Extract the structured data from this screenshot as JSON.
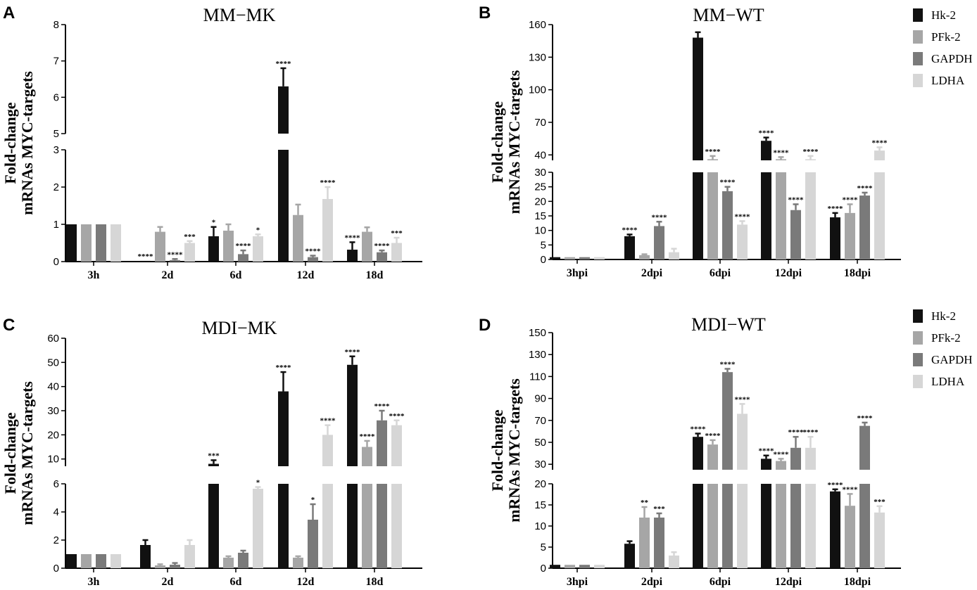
{
  "palette": {
    "Hk-2": "#111111",
    "PFk-2": "#a6a6a6",
    "GAPDH": "#7a7a7a",
    "LDHA": "#d6d6d6"
  },
  "chart_data": [
    {
      "type": "bar",
      "panel": "A",
      "title": "MM−MK",
      "ylabel": [
        "Fold-change",
        "mRNAs MYC-targets"
      ],
      "categories": [
        "3h",
        "2d",
        "6d",
        "12d",
        "18d"
      ],
      "broken_axis": {
        "lower": [
          0,
          3
        ],
        "upper": [
          5,
          8
        ]
      },
      "lower_ticks": [
        "0",
        "1",
        "2",
        "3"
      ],
      "upper_ticks": [
        "5",
        "6",
        "7",
        "8"
      ],
      "series": [
        {
          "name": "Hk-2",
          "values": [
            1,
            0.02,
            0.68,
            6.3,
            0.32
          ],
          "errors": [
            0,
            0,
            0.25,
            0.5,
            0.2
          ],
          "sig": [
            "",
            "****",
            "*",
            "****",
            "****"
          ]
        },
        {
          "name": "PFk-2",
          "values": [
            1,
            0.8,
            0.83,
            1.25,
            0.8
          ],
          "errors": [
            0,
            0.13,
            0.17,
            0.28,
            0.12
          ],
          "sig": [
            "",
            "",
            "",
            "",
            ""
          ]
        },
        {
          "name": "GAPDH",
          "values": [
            1,
            0.04,
            0.2,
            0.12,
            0.25
          ],
          "errors": [
            0,
            0.03,
            0.1,
            0.04,
            0.05
          ],
          "sig": [
            "",
            "****",
            "****",
            "****",
            "****"
          ]
        },
        {
          "name": "LDHA",
          "values": [
            1,
            0.5,
            0.68,
            1.68,
            0.5
          ],
          "errors": [
            0,
            0.05,
            0.05,
            0.32,
            0.14
          ],
          "sig": [
            "",
            "***",
            "*",
            "****",
            "***"
          ]
        }
      ]
    },
    {
      "type": "bar",
      "panel": "B",
      "title": "MM−WT",
      "ylabel": [
        "Fold-change",
        "mRNAs MYC-targets"
      ],
      "categories": [
        "3hpi",
        "2dpi",
        "6dpi",
        "12dpi",
        "18dpi"
      ],
      "broken_axis": {
        "lower": [
          0,
          30
        ],
        "upper": [
          35,
          160
        ]
      },
      "lower_ticks": [
        "0",
        "5",
        "10",
        "15",
        "20",
        "25",
        "30"
      ],
      "upper_ticks": [
        "40",
        "70",
        "100",
        "130",
        "160"
      ],
      "legend": [
        "Hk-2",
        "PFk-2",
        "GAPDH",
        "LDHA"
      ],
      "series": [
        {
          "name": "Hk-2",
          "values": [
            0.8,
            8,
            148,
            53,
            14.5
          ],
          "errors": [
            0,
            0.6,
            5,
            3,
            1.5
          ],
          "sig": [
            "",
            "****",
            "",
            "****",
            "****"
          ]
        },
        {
          "name": "PFk-2",
          "values": [
            0.8,
            1.5,
            36,
            36,
            16
          ],
          "errors": [
            0,
            0.3,
            3,
            2,
            3
          ],
          "sig": [
            "",
            "",
            "****",
            "****",
            "****"
          ]
        },
        {
          "name": "GAPDH",
          "values": [
            0.8,
            11.5,
            23.5,
            17,
            22
          ],
          "errors": [
            0,
            1.5,
            1.5,
            2,
            1
          ],
          "sig": [
            "",
            "****",
            "****",
            "****",
            "****"
          ]
        },
        {
          "name": "LDHA",
          "values": [
            0.8,
            2.5,
            12,
            36,
            44
          ],
          "errors": [
            0,
            1.2,
            1.2,
            3,
            3
          ],
          "sig": [
            "",
            "",
            "****",
            "****",
            "****"
          ]
        }
      ]
    },
    {
      "type": "bar",
      "panel": "C",
      "title": "MDI−MK",
      "ylabel": [
        "Fold-change",
        "mRNAs MYC-targets"
      ],
      "categories": [
        "3h",
        "2d",
        "6d",
        "12d",
        "18d"
      ],
      "broken_axis": {
        "lower": [
          0,
          6
        ],
        "upper": [
          7,
          60
        ]
      },
      "lower_ticks": [
        "0",
        "2",
        "4",
        "6"
      ],
      "upper_ticks": [
        "10",
        "20",
        "30",
        "40",
        "50",
        "60"
      ],
      "series": [
        {
          "name": "Hk-2",
          "values": [
            1,
            1.65,
            8,
            38,
            49
          ],
          "errors": [
            0,
            0.35,
            1.5,
            8,
            3.5
          ],
          "sig": [
            "",
            "",
            "***",
            "****",
            "****"
          ]
        },
        {
          "name": "PFk-2",
          "values": [
            1,
            0.2,
            0.75,
            0.75,
            15
          ],
          "errors": [
            0,
            0.08,
            0.1,
            0.1,
            2.5
          ],
          "sig": [
            "",
            "",
            "",
            "",
            "****"
          ]
        },
        {
          "name": "GAPDH",
          "values": [
            1,
            0.25,
            1.1,
            3.45,
            26
          ],
          "errors": [
            0,
            0.12,
            0.15,
            1.1,
            4
          ],
          "sig": [
            "",
            "",
            "",
            "*",
            "****"
          ]
        },
        {
          "name": "LDHA",
          "values": [
            1,
            1.65,
            5.65,
            20,
            24
          ],
          "errors": [
            0,
            0.35,
            0.12,
            4,
            2
          ],
          "sig": [
            "",
            "",
            "*",
            "****",
            "****"
          ]
        }
      ]
    },
    {
      "type": "bar",
      "panel": "D",
      "title": "MDI−WT",
      "ylabel": [
        "Fold-change",
        "mRNAs MYC-targets"
      ],
      "categories": [
        "3hpi",
        "2dpi",
        "6dpi",
        "12dpi",
        "18dpi"
      ],
      "broken_axis": {
        "lower": [
          0,
          20
        ],
        "upper": [
          25,
          150
        ]
      },
      "lower_ticks": [
        "0",
        "5",
        "10",
        "15",
        "20"
      ],
      "upper_ticks": [
        "30",
        "50",
        "70",
        "90",
        "110",
        "130",
        "150"
      ],
      "legend": [
        "Hk-2",
        "PFk-2",
        "GAPDH",
        "LDHA"
      ],
      "series": [
        {
          "name": "Hk-2",
          "values": [
            0.8,
            5.8,
            55,
            35,
            18.2
          ],
          "errors": [
            0,
            0.6,
            3,
            3,
            0.5
          ],
          "sig": [
            "",
            "",
            "****",
            "****",
            "****"
          ]
        },
        {
          "name": "PFk-2",
          "values": [
            0.8,
            12,
            48,
            33,
            14.8
          ],
          "errors": [
            0,
            2.5,
            4,
            2,
            2.8
          ],
          "sig": [
            "",
            "**",
            "****",
            "****",
            "****"
          ]
        },
        {
          "name": "GAPDH",
          "values": [
            0.8,
            12,
            114,
            45,
            65
          ],
          "errors": [
            0,
            1,
            3,
            10,
            3
          ],
          "sig": [
            "",
            "***",
            "****",
            "****",
            "****"
          ]
        },
        {
          "name": "LDHA",
          "values": [
            0.8,
            3,
            76,
            45,
            13.2
          ],
          "errors": [
            0,
            0.8,
            9,
            10,
            1.5
          ],
          "sig": [
            "",
            "",
            "****",
            "****",
            "***"
          ]
        }
      ]
    }
  ]
}
